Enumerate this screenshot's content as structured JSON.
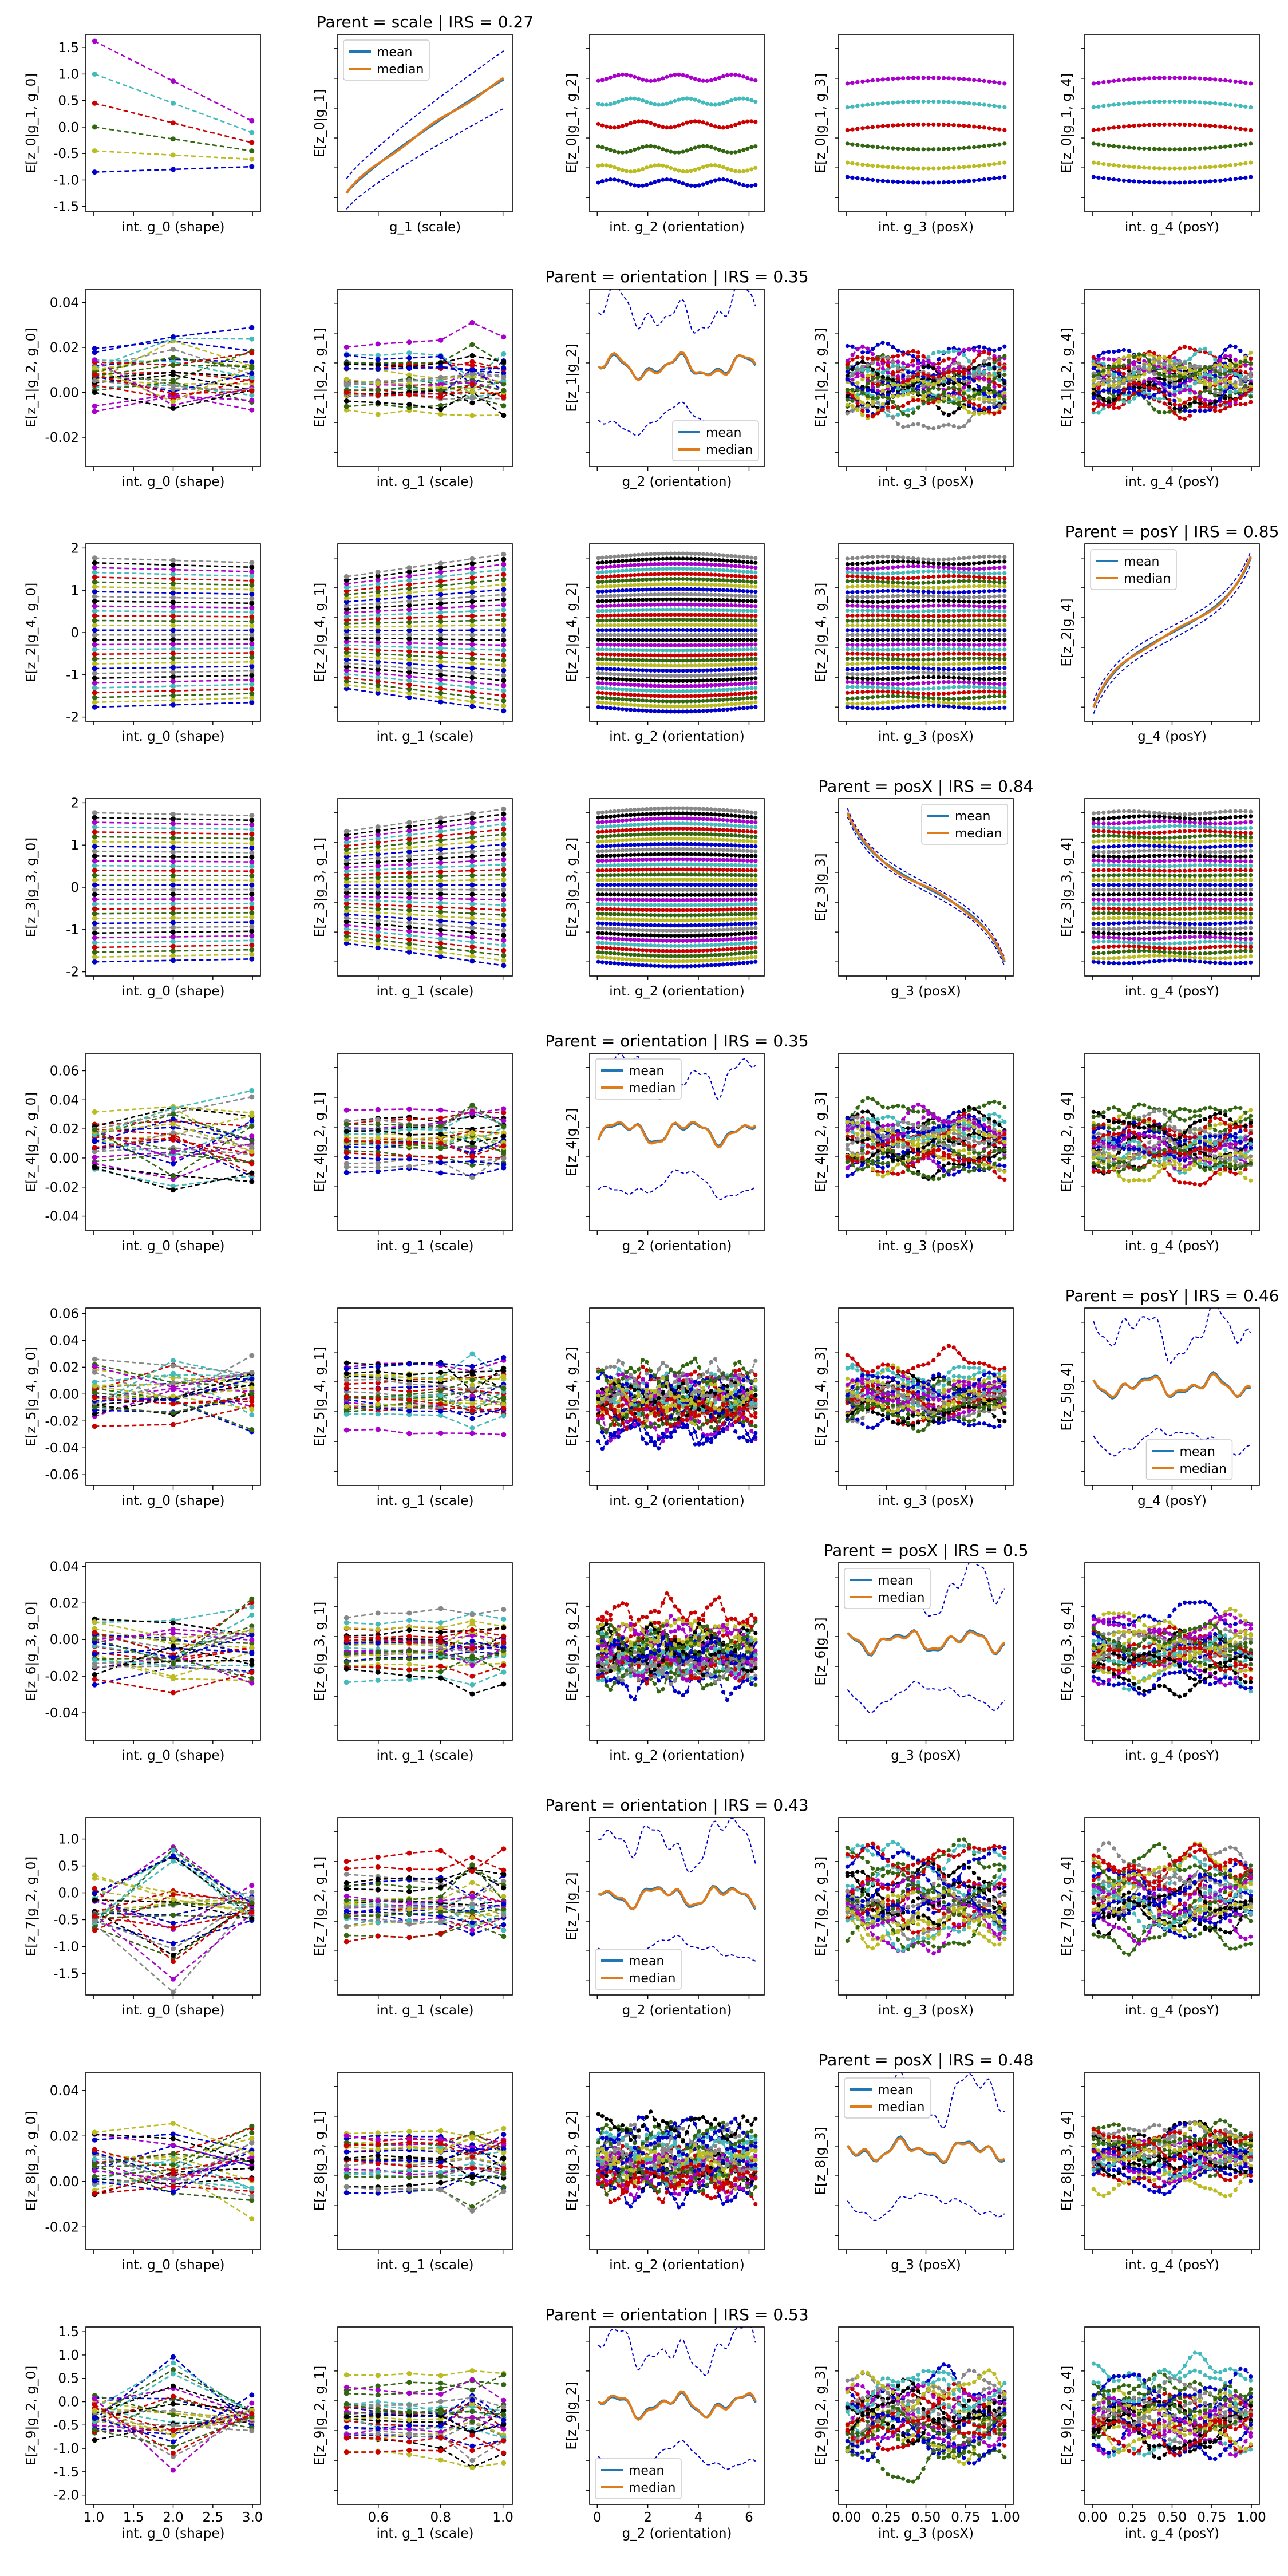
{
  "figure": {
    "description_colors": [
      "#0000cc",
      "#bbbb22",
      "#336611",
      "#cc0000",
      "#44bbbb",
      "#aa00cc",
      "#000000",
      "#888888"
    ],
    "mean_color": "#1f77b4",
    "median_color": "#e07b1a",
    "band_color": "#0000cc",
    "legend_mean": "mean",
    "legend_median": "median"
  },
  "chart_data": [
    {
      "row": 0,
      "type": "line",
      "title": "",
      "titles": [
        "",
        "Parent = scale | IRS = 0.27",
        "",
        "",
        ""
      ],
      "ylabels": [
        "E[z_0|g_1, g_0]",
        "E[z_0|g_1]",
        "E[z_0|g_1, g_2]",
        "E[z_0|g_1, g_3]",
        "E[z_0|g_1, g_4]"
      ],
      "xlabels": [
        "int. g_0 (shape)",
        "g_1 (scale)",
        "int. g_2 (orientation)",
        "int. g_3 (posX)",
        "int. g_4 (posY)"
      ],
      "parent_col": 1,
      "legend_loc": "upper left",
      "yticks": [
        [
          -1.5,
          -1.0,
          -0.5,
          0.0,
          0.5,
          1.0,
          1.5
        ],
        [],
        [],
        [],
        []
      ],
      "ylim": [
        -1.6,
        1.75
      ]
    },
    {
      "row": 1,
      "type": "line",
      "titles": [
        "",
        "",
        "Parent = orientation | IRS = 0.35",
        "",
        ""
      ],
      "ylabels": [
        "E[z_1|g_2, g_0]",
        "E[z_1|g_2, g_1]",
        "E[z_1|g_2]",
        "E[z_1|g_2, g_3]",
        "E[z_1|g_2, g_4]"
      ],
      "xlabels": [
        "int. g_0 (shape)",
        "int. g_1 (scale)",
        "g_2 (orientation)",
        "int. g_3 (posX)",
        "int. g_4 (posY)"
      ],
      "parent_col": 2,
      "legend_loc": "lower right",
      "yticks": [
        [
          -0.02,
          0.0,
          0.02,
          0.04
        ],
        [],
        [],
        [],
        []
      ],
      "ylim": [
        -0.033,
        0.046
      ]
    },
    {
      "row": 2,
      "type": "line",
      "titles": [
        "",
        "",
        "",
        "",
        "Parent = posY | IRS = 0.85"
      ],
      "ylabels": [
        "E[z_2|g_4, g_0]",
        "E[z_2|g_4, g_1]",
        "E[z_2|g_4, g_2]",
        "E[z_2|g_4, g_3]",
        "E[z_2|g_4]"
      ],
      "xlabels": [
        "int. g_0 (shape)",
        "int. g_1 (scale)",
        "int. g_2 (orientation)",
        "int. g_3 (posX)",
        "g_4 (posY)"
      ],
      "parent_col": 4,
      "legend_loc": "upper left",
      "yticks": [
        [
          -2,
          -1,
          0,
          1,
          2
        ],
        [],
        [],
        [],
        []
      ],
      "ylim": [
        -2.1,
        2.1
      ]
    },
    {
      "row": 3,
      "type": "line",
      "titles": [
        "",
        "",
        "",
        "Parent = posX | IRS = 0.84",
        ""
      ],
      "ylabels": [
        "E[z_3|g_3, g_0]",
        "E[z_3|g_3, g_1]",
        "E[z_3|g_3, g_2]",
        "E[z_3|g_3]",
        "E[z_3|g_3, g_4]"
      ],
      "xlabels": [
        "int. g_0 (shape)",
        "int. g_1 (scale)",
        "int. g_2 (orientation)",
        "g_3 (posX)",
        "int. g_4 (posY)"
      ],
      "parent_col": 3,
      "legend_loc": "upper right",
      "yticks": [
        [
          -2,
          -1,
          0,
          1,
          2
        ],
        [],
        [],
        [],
        []
      ],
      "ylim": [
        -2.1,
        2.1
      ]
    },
    {
      "row": 4,
      "type": "line",
      "titles": [
        "",
        "",
        "Parent = orientation | IRS = 0.35",
        "",
        ""
      ],
      "ylabels": [
        "E[z_4|g_2, g_0]",
        "E[z_4|g_2, g_1]",
        "E[z_4|g_2]",
        "E[z_4|g_2, g_3]",
        "E[z_4|g_2, g_4]"
      ],
      "xlabels": [
        "int. g_0 (shape)",
        "int. g_1 (scale)",
        "g_2 (orientation)",
        "int. g_3 (posX)",
        "int. g_4 (posY)"
      ],
      "parent_col": 2,
      "legend_loc": "upper left",
      "yticks": [
        [
          -0.04,
          -0.02,
          0.0,
          0.02,
          0.04,
          0.06
        ],
        [],
        [],
        [],
        []
      ],
      "ylim": [
        -0.05,
        0.072
      ]
    },
    {
      "row": 5,
      "type": "line",
      "titles": [
        "",
        "",
        "",
        "",
        "Parent = posY | IRS = 0.46"
      ],
      "ylabels": [
        "E[z_5|g_4, g_0]",
        "E[z_5|g_4, g_1]",
        "E[z_5|g_4, g_2]",
        "E[z_5|g_4, g_3]",
        "E[z_5|g_4]"
      ],
      "xlabels": [
        "int. g_0 (shape)",
        "int. g_1 (scale)",
        "int. g_2 (orientation)",
        "int. g_3 (posX)",
        "g_4 (posY)"
      ],
      "parent_col": 4,
      "legend_loc": "lower center",
      "yticks": [
        [
          -0.06,
          -0.04,
          -0.02,
          0.0,
          0.02,
          0.04,
          0.06
        ],
        [],
        [],
        [],
        []
      ],
      "ylim": [
        -0.068,
        0.064
      ]
    },
    {
      "row": 6,
      "type": "line",
      "titles": [
        "",
        "",
        "",
        "Parent = posX | IRS = 0.5",
        ""
      ],
      "ylabels": [
        "E[z_6|g_3, g_0]",
        "E[z_6|g_3, g_1]",
        "E[z_6|g_3, g_2]",
        "E[z_6|g_3]",
        "E[z_6|g_3, g_4]"
      ],
      "xlabels": [
        "int. g_0 (shape)",
        "int. g_1 (scale)",
        "int. g_2 (orientation)",
        "g_3 (posX)",
        "int. g_4 (posY)"
      ],
      "parent_col": 3,
      "legend_loc": "upper left",
      "yticks": [
        [
          -0.04,
          -0.02,
          0.0,
          0.02,
          0.04
        ],
        [],
        [],
        [],
        []
      ],
      "ylim": [
        -0.055,
        0.042
      ]
    },
    {
      "row": 7,
      "type": "line",
      "titles": [
        "",
        "",
        "Parent = orientation | IRS = 0.43",
        "",
        ""
      ],
      "ylabels": [
        "E[z_7|g_2, g_0]",
        "E[z_7|g_2, g_1]",
        "E[z_7|g_2]",
        "E[z_7|g_2, g_3]",
        "E[z_7|g_2, g_4]"
      ],
      "xlabels": [
        "int. g_0 (shape)",
        "int. g_1 (scale)",
        "g_2 (orientation)",
        "int. g_3 (posX)",
        "int. g_4 (posY)"
      ],
      "parent_col": 2,
      "legend_loc": "lower left",
      "yticks": [
        [
          -1.5,
          -1.0,
          -0.5,
          0.0,
          0.5,
          1.0
        ],
        [],
        [],
        [],
        []
      ],
      "ylim": [
        -1.9,
        1.4
      ]
    },
    {
      "row": 8,
      "type": "line",
      "titles": [
        "",
        "",
        "",
        "Parent = posX | IRS = 0.48",
        ""
      ],
      "ylabels": [
        "E[z_8|g_3, g_0]",
        "E[z_8|g_3, g_1]",
        "E[z_8|g_3, g_2]",
        "E[z_8|g_3]",
        "E[z_8|g_3, g_4]"
      ],
      "xlabels": [
        "int. g_0 (shape)",
        "int. g_1 (scale)",
        "int. g_2 (orientation)",
        "g_3 (posX)",
        "int. g_4 (posY)"
      ],
      "parent_col": 3,
      "legend_loc": "upper left",
      "yticks": [
        [
          -0.02,
          0.0,
          0.02,
          0.04
        ],
        [],
        [],
        [],
        []
      ],
      "ylim": [
        -0.03,
        0.048
      ]
    },
    {
      "row": 9,
      "type": "line",
      "titles": [
        "",
        "",
        "Parent = orientation | IRS = 0.53",
        "",
        ""
      ],
      "ylabels": [
        "E[z_9|g_2, g_0]",
        "E[z_9|g_2, g_1]",
        "E[z_9|g_2]",
        "E[z_9|g_2, g_3]",
        "E[z_9|g_2, g_4]"
      ],
      "xlabels": [
        "int. g_0 (shape)",
        "int. g_1 (scale)",
        "g_2 (orientation)",
        "int. g_3 (posX)",
        "int. g_4 (posY)"
      ],
      "parent_col": 2,
      "legend_loc": "lower left",
      "yticks": [
        [
          -2.0,
          -1.5,
          -1.0,
          -0.5,
          0.0,
          0.5,
          1.0,
          1.5
        ],
        [],
        [],
        [],
        []
      ],
      "ylim": [
        -2.2,
        1.6
      ]
    }
  ],
  "x_axes": {
    "ticks": [
      [
        "1.0",
        "1.5",
        "2.0",
        "2.5",
        "3.0"
      ],
      [
        "0.6",
        "0.8",
        "1.0"
      ],
      [
        "0",
        "2",
        "4",
        "6"
      ],
      [
        "0.00",
        "0.25",
        "0.50",
        "0.75",
        "1.00"
      ],
      [
        "0.00",
        "0.25",
        "0.50",
        "0.75",
        "1.00"
      ]
    ],
    "tick_values": [
      [
        1.0,
        1.5,
        2.0,
        2.5,
        3.0
      ],
      [
        0.6,
        0.8,
        1.0
      ],
      [
        0,
        2,
        4,
        6
      ],
      [
        0.0,
        0.25,
        0.5,
        0.75,
        1.0
      ],
      [
        0.0,
        0.25,
        0.5,
        0.75,
        1.0
      ]
    ],
    "xlim": [
      [
        0.9,
        3.1
      ],
      [
        0.47,
        1.03
      ],
      [
        -0.3,
        6.6
      ],
      [
        -0.05,
        1.05
      ],
      [
        -0.05,
        1.05
      ]
    ],
    "n_points": [
      3,
      6,
      40,
      32,
      32
    ]
  }
}
